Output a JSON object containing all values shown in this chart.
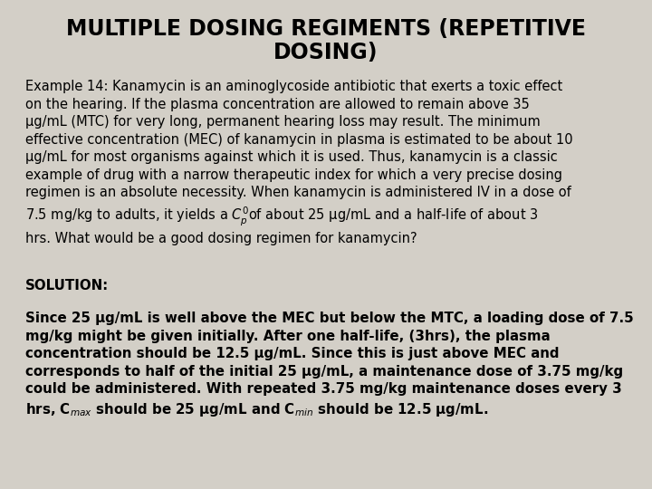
{
  "background_color": "#d3cfc7",
  "title_line1": "MULTIPLE DOSING REGIMENTS (REPETITIVE",
  "title_line2": "DOSING)",
  "title_fontsize": 17,
  "body_fontsize": 10.5,
  "bold_fontsize": 10.8,
  "solution_label_fontsize": 10.8,
  "example_text": "Example 14: Kanamycin is an aminoglycoside antibiotic that exerts a toxic effect\non the hearing. If the plasma concentration are allowed to remain above 35\nμg/mL (MTC) for very long, permanent hearing loss may result. The minimum\neffective concentration (MEC) of kanamycin in plasma is estimated to be about 10\nμg/mL for most organisms against which it is used. Thus, kanamycin is a classic\nexample of drug with a narrow therapeutic index for which a very precise dosing\nregimen is an absolute necessity. When kanamycin is administered IV in a dose of\n7.5 mg/kg to adults, it yields a $C^0_p$of about 25 μg/mL and a half-life of about 3\nhrs. What would be a good dosing regimen for kanamycin?",
  "solution_label": "SOLUTION:",
  "solution_text": "Since 25 μg/mL is well above the MEC but below the MTC, a loading dose of 7.5\nmg/kg might be given initially. After one half-life, (3hrs), the plasma\nconcentration should be 12.5 μg/mL. Since this is just above MEC and\ncorresponds to half of the initial 25 μg/mL, a maintenance dose of 3.75 mg/kg\ncould be administered. With repeated 3.75 mg/kg maintenance doses every 3\nhrs, C$_{max}$ should be 25 μg/mL and C$_{min}$ should be 12.5 μg/mL."
}
